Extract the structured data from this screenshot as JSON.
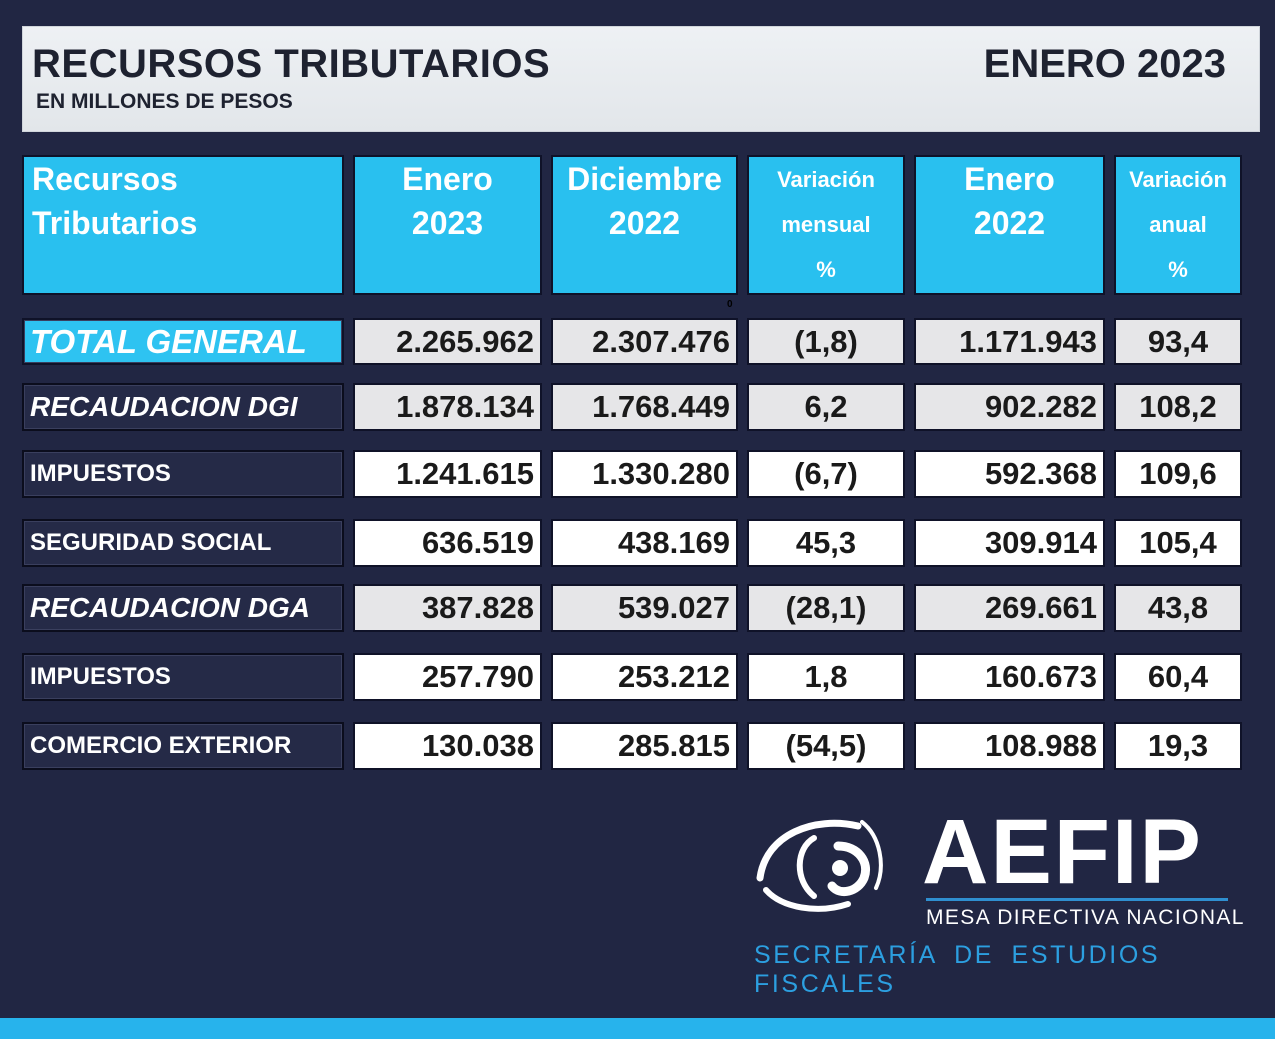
{
  "header": {
    "title": "RECURSOS TRIBUTARIOS",
    "subtitle": "EN MILLONES DE PESOS",
    "period": "ENERO 2023"
  },
  "columns": [
    {
      "l1": "Recursos",
      "l2": "Tributarios"
    },
    {
      "l1": "Enero",
      "l2": "2023"
    },
    {
      "l1": "Diciembre",
      "l2": "2022"
    },
    {
      "l1": "Variación",
      "l2": "mensual",
      "l3": "%"
    },
    {
      "l1": "Enero",
      "l2": "2022"
    },
    {
      "l1": "Variación",
      "l2": "anual",
      "l3": "%"
    }
  ],
  "stray_mark": "0",
  "rows": [
    {
      "label": "TOTAL GENERAL",
      "ene2023": "2.265.962",
      "dic2022": "2.307.476",
      "var_mensual": "(1,8)",
      "ene2022": "1.171.943",
      "var_anual": "93,4"
    },
    {
      "label": "RECAUDACION DGI",
      "ene2023": "1.878.134",
      "dic2022": "1.768.449",
      "var_mensual": "6,2",
      "ene2022": "902.282",
      "var_anual": "108,2"
    },
    {
      "label": "IMPUESTOS",
      "ene2023": "1.241.615",
      "dic2022": "1.330.280",
      "var_mensual": "(6,7)",
      "ene2022": "592.368",
      "var_anual": "109,6"
    },
    {
      "label": "SEGURIDAD SOCIAL",
      "ene2023": "636.519",
      "dic2022": "438.169",
      "var_mensual": "45,3",
      "ene2022": "309.914",
      "var_anual": "105,4"
    },
    {
      "label": "RECAUDACION DGA",
      "ene2023": "387.828",
      "dic2022": "539.027",
      "var_mensual": "(28,1)",
      "ene2022": "269.661",
      "var_anual": "43,8"
    },
    {
      "label": "IMPUESTOS",
      "ene2023": "257.790",
      "dic2022": "253.212",
      "var_mensual": "1,8",
      "ene2022": "160.673",
      "var_anual": "60,4"
    },
    {
      "label": "COMERCIO EXTERIOR",
      "ene2023": "130.038",
      "dic2022": "285.815",
      "var_mensual": "(54,5)",
      "ene2022": "108.988",
      "var_anual": "19,3"
    }
  ],
  "logo": {
    "name": "AEFIP",
    "subtitle": "MESA DIRECTIVA NACIONAL",
    "secretaria": "SECRETARÍA DE ESTUDIOS FISCALES"
  },
  "colors": {
    "background": "#212643",
    "header_cyan": "#29c0ef",
    "logo_blue": "#2c9fe0"
  }
}
